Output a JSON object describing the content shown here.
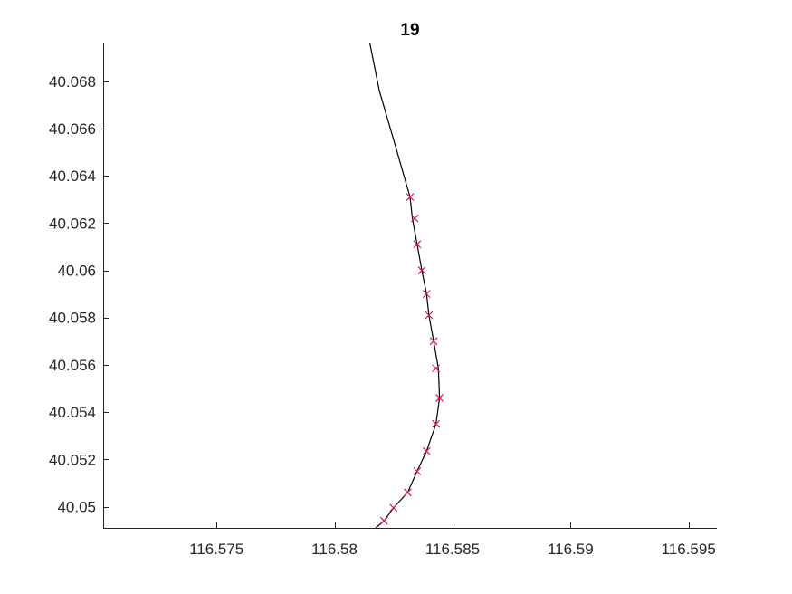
{
  "chart_data": {
    "type": "line",
    "title": "19",
    "xlabel": "",
    "ylabel": "",
    "xlim": [
      116.5702,
      116.5962
    ],
    "ylim": [
      40.0491,
      40.0696
    ],
    "xticks": [
      116.575,
      116.58,
      116.585,
      116.59,
      116.595
    ],
    "xtick_labels": [
      "116.575",
      "116.58",
      "116.585",
      "116.59",
      "116.595"
    ],
    "yticks": [
      40.05,
      40.052,
      40.054,
      40.056,
      40.058,
      40.06,
      40.062,
      40.064,
      40.066,
      40.068
    ],
    "ytick_labels": [
      "40.05",
      "40.052",
      "40.054",
      "40.056",
      "40.058",
      "40.06",
      "40.062",
      "40.064",
      "40.066",
      "40.068"
    ],
    "grid": false,
    "series": [
      {
        "style": "line",
        "color": "#000000",
        "x": [
          116.58175,
          116.5821,
          116.5825,
          116.5831,
          116.5835,
          116.5839,
          116.5843,
          116.58445,
          116.5844,
          116.5842,
          116.584,
          116.5839,
          116.5837,
          116.5835,
          116.5833,
          116.5832,
          116.5826,
          116.5819,
          116.5815
        ],
        "y": [
          40.0491,
          40.0494,
          40.04995,
          40.0506,
          40.0515,
          40.05235,
          40.0535,
          40.0546,
          40.05585,
          40.057,
          40.0581,
          40.059,
          40.06,
          40.0611,
          40.0622,
          40.0631,
          40.0652,
          40.0676,
          40.0696
        ]
      },
      {
        "style": "markers",
        "marker": "x",
        "color": "#d4145a",
        "x": [
          116.5821,
          116.5825,
          116.5831,
          116.5835,
          116.5839,
          116.5843,
          116.58445,
          116.5843,
          116.5842,
          116.584,
          116.5839,
          116.5837,
          116.5835,
          116.5834,
          116.5832
        ],
        "y": [
          40.0494,
          40.04995,
          40.0506,
          40.0515,
          40.05235,
          40.0535,
          40.0546,
          40.05585,
          40.057,
          40.0581,
          40.059,
          40.06,
          40.0611,
          40.0622,
          40.0631
        ]
      }
    ]
  }
}
